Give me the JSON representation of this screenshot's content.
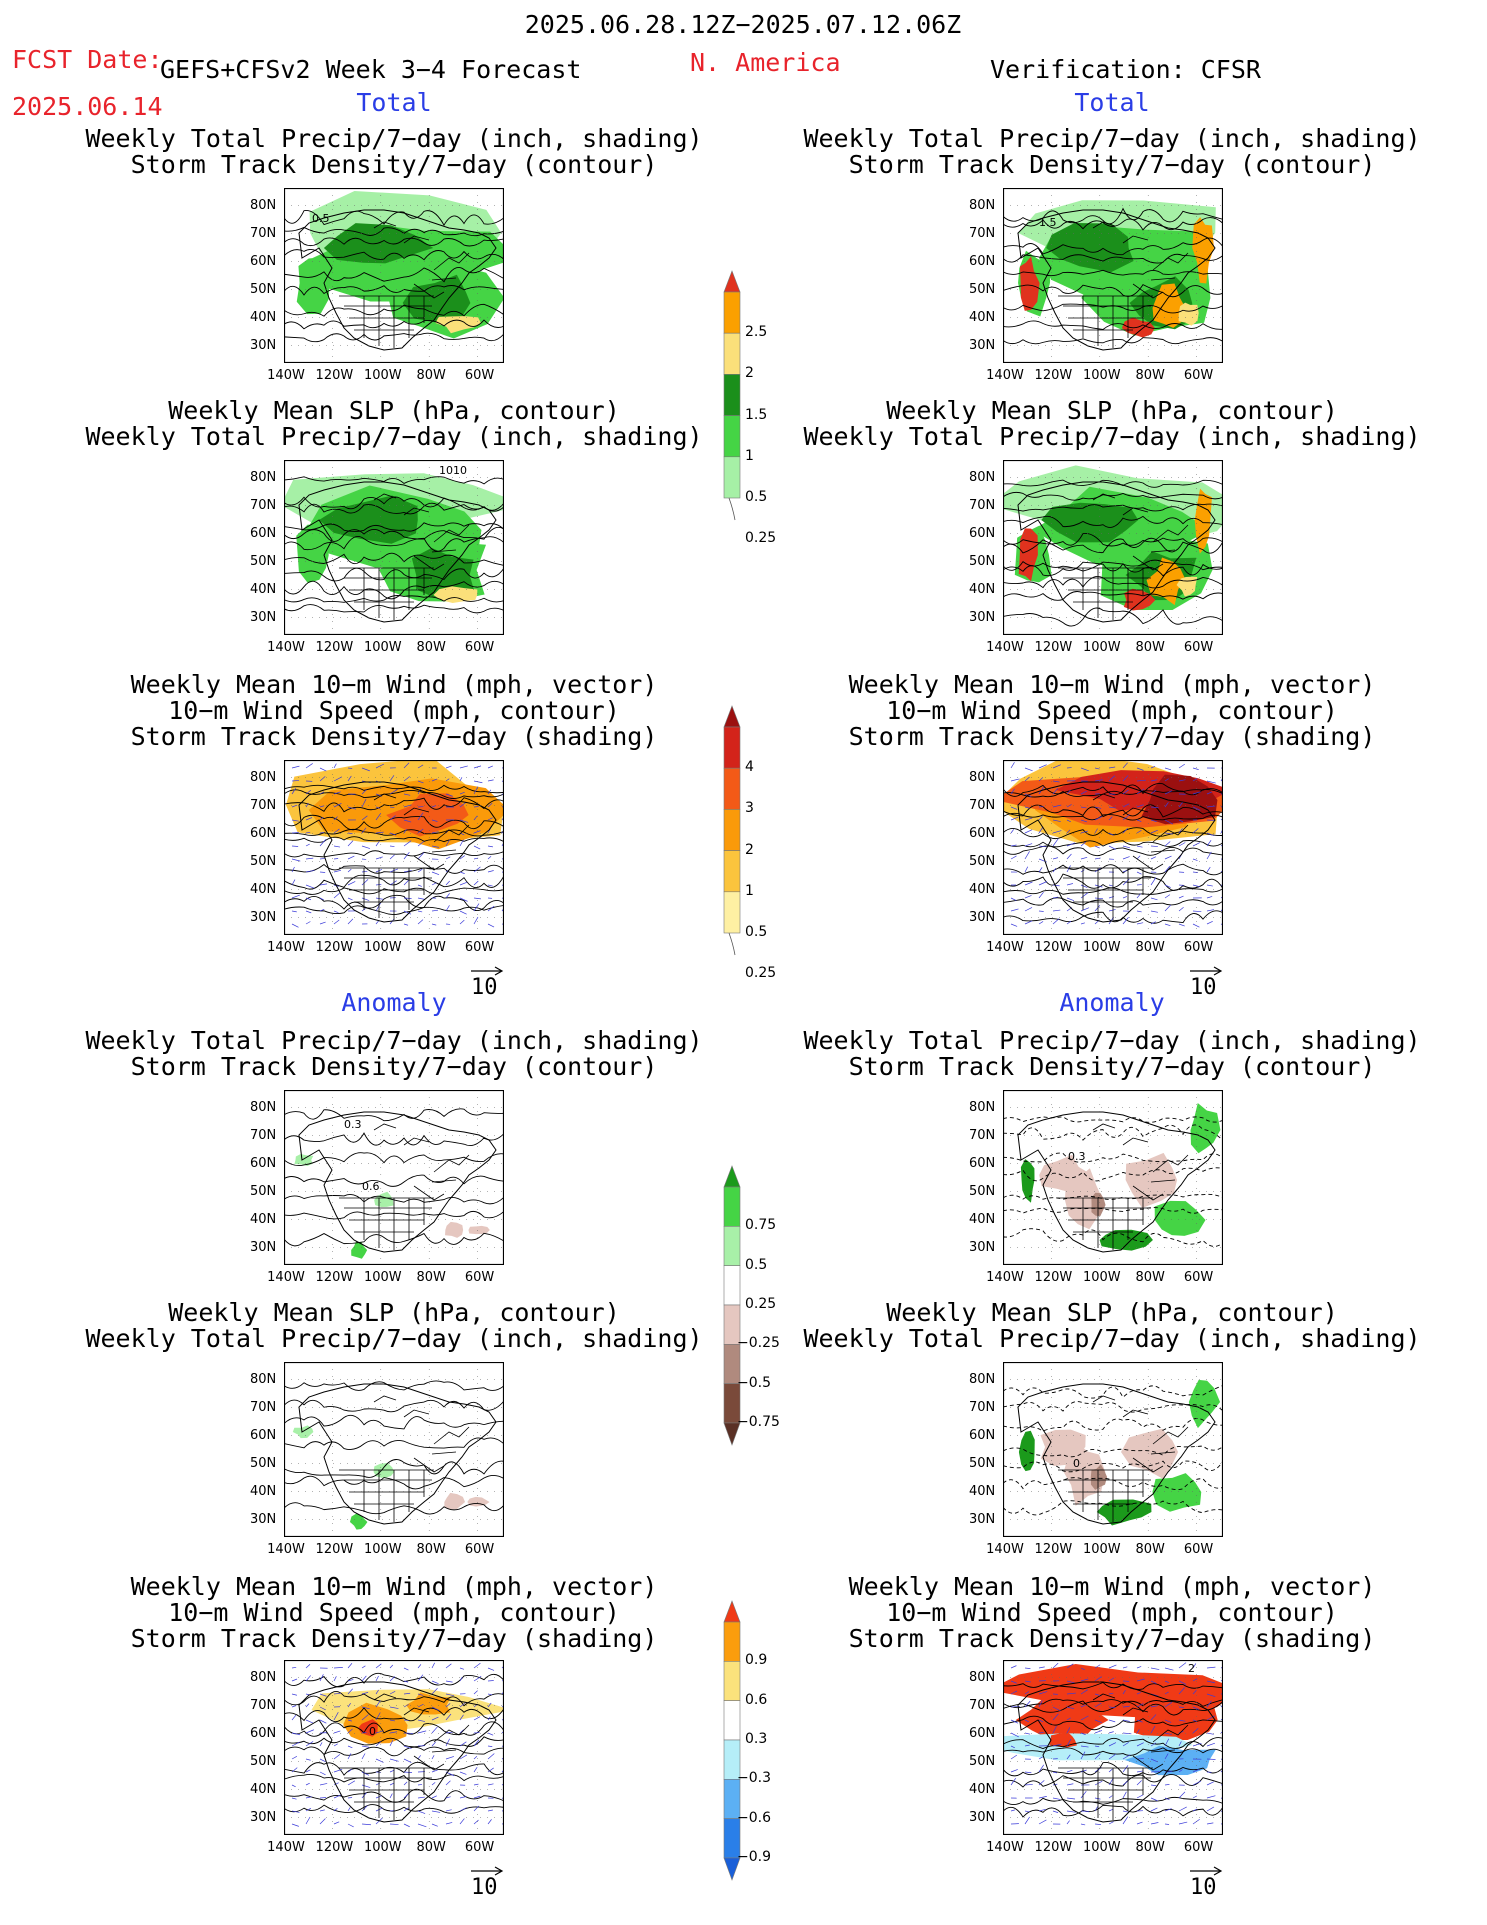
{
  "header": {
    "date_range": "2025.06.28.12Z−2025.07.12.06Z",
    "fcst_label": "FCST Date:",
    "model": "GEFS+CFSv2 Week 3−4 Forecast",
    "region": "N. America",
    "fcst_date": "2025.06.14",
    "verification": "Verification: CFSR"
  },
  "sections": {
    "total_label": "Total",
    "anomaly_label": "Anomaly"
  },
  "panel_titles": {
    "precip_storm": [
      "Weekly Total Precip/7−day (inch, shading)",
      "Storm Track Density/7−day (contour)"
    ],
    "slp_precip": [
      "Weekly Mean SLP (hPa, contour)",
      "Weekly Total Precip/7−day (inch, shading)"
    ],
    "wind_storm": [
      "Weekly Mean 10−m Wind (mph, vector)",
      "10−m Wind Speed (mph, contour)",
      "Storm Track Density/7−day (shading)"
    ]
  },
  "axes": {
    "lat_ticks": [
      "80N",
      "70N",
      "60N",
      "50N",
      "40N",
      "30N"
    ],
    "lon_ticks": [
      "140W",
      "120W",
      "100W",
      "80W",
      "60W"
    ]
  },
  "vector_ref": "10",
  "map_labels": {
    "fc_total_precip": "0.5",
    "fc_total_slp": "1010",
    "obs_total_precip": "1.5",
    "fc_anom_precip_a": "0.3",
    "fc_anom_precip_b": "0.6",
    "obs_anom_precip": "0.3",
    "obs_anom_slp": "0",
    "fc_anom_wind": "0",
    "obs_anom_wind": "2"
  },
  "legends": {
    "total_precip": {
      "labels": [
        "2.5",
        "2",
        "1.5",
        "1",
        "0.5",
        "0.25"
      ],
      "colors": [
        "#e0321e",
        "#fba000",
        "#fbe07a",
        "#1b8f1b",
        "#45d445",
        "#a6f0a6"
      ]
    },
    "total_storm": {
      "labels": [
        "4",
        "3",
        "2",
        "1",
        "0.5",
        "0.25"
      ],
      "colors": [
        "#9b1010",
        "#d3231a",
        "#f35a17",
        "#fa9a0a",
        "#fbc43d",
        "#fef0a3"
      ]
    },
    "anom_precip": {
      "labels": [
        "0.75",
        "0.5",
        "0.25",
        "−0.25",
        "−0.5",
        "−0.75"
      ],
      "colors": [
        "#1b9a1b",
        "#45d445",
        "#a8f0a8",
        "#ffffff",
        "#e5c7c0",
        "#b08a7e",
        "#7a4a3a",
        "#5a3025"
      ]
    },
    "anom_storm": {
      "labels": [
        "0.9",
        "0.6",
        "0.3",
        "−0.3",
        "−0.6",
        "−0.9"
      ],
      "colors": [
        "#f03a16",
        "#fb9d0d",
        "#fbe27c",
        "#ffffff",
        "#b5eef8",
        "#5cb0f4",
        "#2a7fe8",
        "#1a5fd8"
      ]
    }
  },
  "colors": {
    "header_red": "#e8232b",
    "section_blue": "#2a3de6"
  }
}
